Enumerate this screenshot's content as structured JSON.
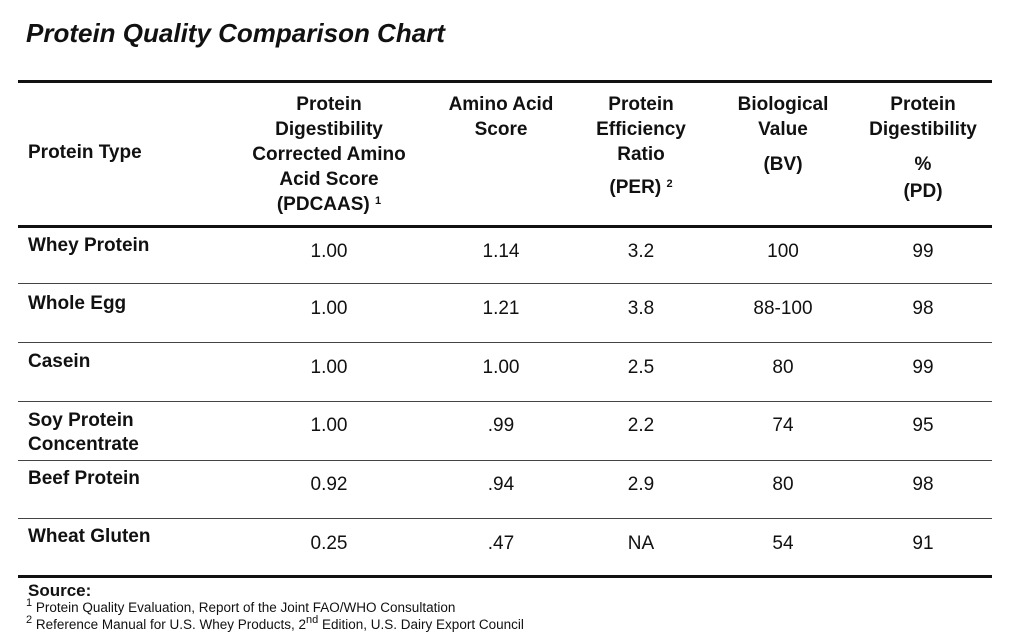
{
  "title": "Protein Quality Comparison Chart",
  "table": {
    "headers": {
      "type": [
        "Protein Type"
      ],
      "pdcaas": [
        "Protein",
        "Digestibility",
        "Corrected Amino",
        "Acid Score",
        "(PDCAAS)"
      ],
      "pdcaas_sup": "1",
      "aas": [
        "Amino Acid",
        "Score"
      ],
      "per": [
        "Protein",
        "Efficiency",
        "Ratio",
        "(PER)"
      ],
      "per_sup": "2",
      "bv": [
        "Biological",
        "Value",
        "(BV)"
      ],
      "pd": [
        "Protein",
        "Digestibility",
        "%",
        "(PD)"
      ]
    },
    "rows": [
      {
        "name": [
          "Whey Protein"
        ],
        "pdcaas": "1.00",
        "aas": "1.14",
        "per": "3.2",
        "bv": "100",
        "pd": "99"
      },
      {
        "name": [
          "Whole Egg"
        ],
        "pdcaas": "1.00",
        "aas": "1.21",
        "per": "3.8",
        "bv": "88-100",
        "pd": "98"
      },
      {
        "name": [
          "Casein"
        ],
        "pdcaas": "1.00",
        "aas": "1.00",
        "per": "2.5",
        "bv": "80",
        "pd": "99"
      },
      {
        "name": [
          "Soy Protein",
          "Concentrate"
        ],
        "pdcaas": "1.00",
        "aas": ".99",
        "per": "2.2",
        "bv": "74",
        "pd": "95"
      },
      {
        "name": [
          "Beef Protein"
        ],
        "pdcaas": "0.92",
        "aas": ".94",
        "per": "2.9",
        "bv": "80",
        "pd": "98"
      },
      {
        "name": [
          "Wheat Gluten"
        ],
        "pdcaas": "0.25",
        "aas": ".47",
        "per": "NA",
        "bv": "54",
        "pd": "91"
      }
    ]
  },
  "source": {
    "label": "Source:",
    "footnotes": [
      {
        "mark": "1",
        "text": "Protein Quality Evaluation, Report of the Joint FAO/WHO Consultation"
      },
      {
        "mark": "2",
        "text_before": "Reference Manual for U.S. Whey Products, 2",
        "sup": "nd",
        "text_after": " Edition, U.S. Dairy Export Council"
      }
    ]
  }
}
